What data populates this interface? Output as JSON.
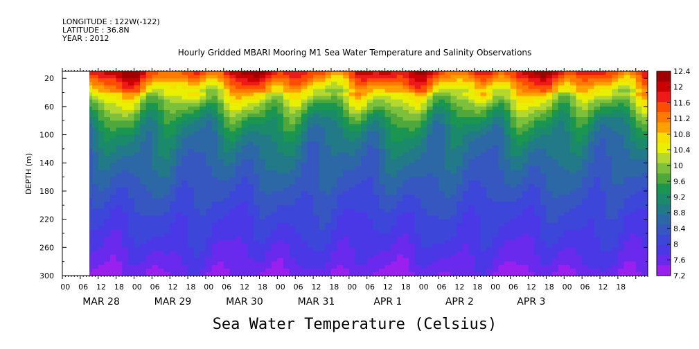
{
  "meta": {
    "longitude": "LONGITUDE : 122W(-122)",
    "latitude": "LATITUDE : 36.8N",
    "year": "YEAR : 2012"
  },
  "chart_data": {
    "type": "heatmap",
    "title": "Hourly Gridded MBARI Mooring M1 Sea Water Temperature and Salinity Observations",
    "subtitle": "Sea Water Temperature (Celsius)",
    "ylabel": "DEPTH (m)",
    "y_ticks": [
      "20",
      "60",
      "100",
      "140",
      "180",
      "220",
      "260",
      "300"
    ],
    "y_tick_values": [
      20,
      60,
      100,
      140,
      180,
      220,
      260,
      300
    ],
    "ylim": [
      10,
      300
    ],
    "y_inverted": true,
    "x_hour_labels": [
      "00",
      "06",
      "12",
      "18",
      "00",
      "06",
      "12",
      "18",
      "00",
      "06",
      "12",
      "18",
      "00",
      "06",
      "12",
      "18",
      "00",
      "06",
      "12",
      "18",
      "00",
      "06",
      "12",
      "18",
      "00",
      "06",
      "12",
      "18",
      "00",
      "06",
      "12",
      "18"
    ],
    "x_day_labels": [
      "MAR 28",
      "MAR 29",
      "MAR 30",
      "MAR 31",
      "APR  1",
      "APR  2",
      "APR  3"
    ],
    "xlim_hours": [
      0,
      196
    ],
    "data_start_hour": 4,
    "colorbar_levels": [
      "12.4",
      "12",
      "11.6",
      "11.2",
      "10.8",
      "10.4",
      "10",
      "9.6",
      "9.2",
      "8.8",
      "8.4",
      "8",
      "7.6",
      "7.2"
    ],
    "colorbar_values": [
      12.4,
      12.0,
      11.6,
      11.2,
      10.8,
      10.4,
      10.0,
      9.6,
      9.2,
      8.8,
      8.4,
      8.0,
      7.6,
      7.2
    ],
    "colors": [
      "#a00000",
      "#cc0000",
      "#ee1a1a",
      "#ff4d00",
      "#ff7a00",
      "#ff9f00",
      "#f5e000",
      "#e8f000",
      "#b4d830",
      "#7cc03c",
      "#4ea83c",
      "#1a9650",
      "#1a8a6a",
      "#227a88",
      "#2c68a6",
      "#3656c0",
      "#3c46d8",
      "#4a38e6",
      "#6a2aee",
      "#9a20f0"
    ],
    "profile": {
      "depths": [
        10,
        20,
        30,
        40,
        50,
        60,
        70,
        80,
        100,
        120,
        140,
        160,
        180,
        200,
        220,
        240,
        260,
        280,
        300
      ],
      "temps": [
        11.8,
        11.4,
        11.0,
        10.6,
        10.2,
        9.9,
        9.6,
        9.35,
        9.0,
        8.8,
        8.65,
        8.5,
        8.35,
        8.2,
        8.05,
        7.95,
        7.8,
        7.65,
        7.45
      ]
    }
  }
}
